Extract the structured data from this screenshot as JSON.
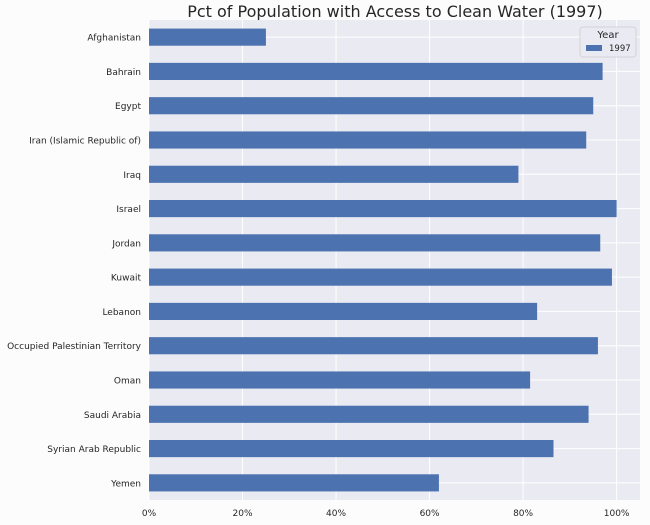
{
  "chart_data": {
    "type": "bar",
    "orientation": "horizontal",
    "title": "Pct of Population with Access to Clean Water (1997)",
    "xlabel": "",
    "ylabel": "",
    "categories": [
      "Afghanistan",
      "Bahrain",
      "Egypt",
      "Iran (Islamic Republic of)",
      "Iraq",
      "Israel",
      "Jordan",
      "Kuwait",
      "Lebanon",
      "Occupied Palestinian Territory",
      "Oman",
      "Saudi Arabia",
      "Syrian Arab Republic",
      "Yemen"
    ],
    "series": [
      {
        "name": "1997",
        "color": "#4c72b0",
        "values": [
          25,
          97,
          95,
          93.5,
          79,
          100,
          96.5,
          99,
          83,
          96,
          81.5,
          94,
          86.5,
          62
        ]
      }
    ],
    "xlim": [
      0,
      105
    ],
    "xticks": [
      0,
      20,
      40,
      60,
      80,
      100
    ],
    "xtick_labels": [
      "0%",
      "20%",
      "40%",
      "60%",
      "80%",
      "100%"
    ],
    "grid": true,
    "legend": {
      "title": "Year",
      "placement": "top-right"
    }
  },
  "colors": {
    "plot_background": "#eaeaf2",
    "grid": "#ffffff",
    "page_background": "#fcfcfc"
  }
}
